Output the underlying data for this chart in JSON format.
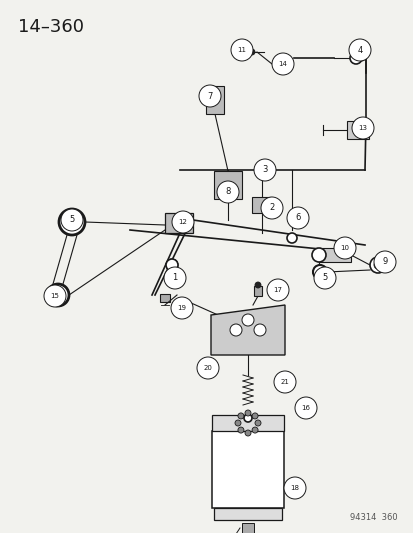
{
  "title": "14–360",
  "watermark": "94314  360",
  "bg_color": "#f2f2ee",
  "line_color": "#1a1a1a",
  "figsize": [
    4.14,
    5.33
  ],
  "dpi": 100
}
